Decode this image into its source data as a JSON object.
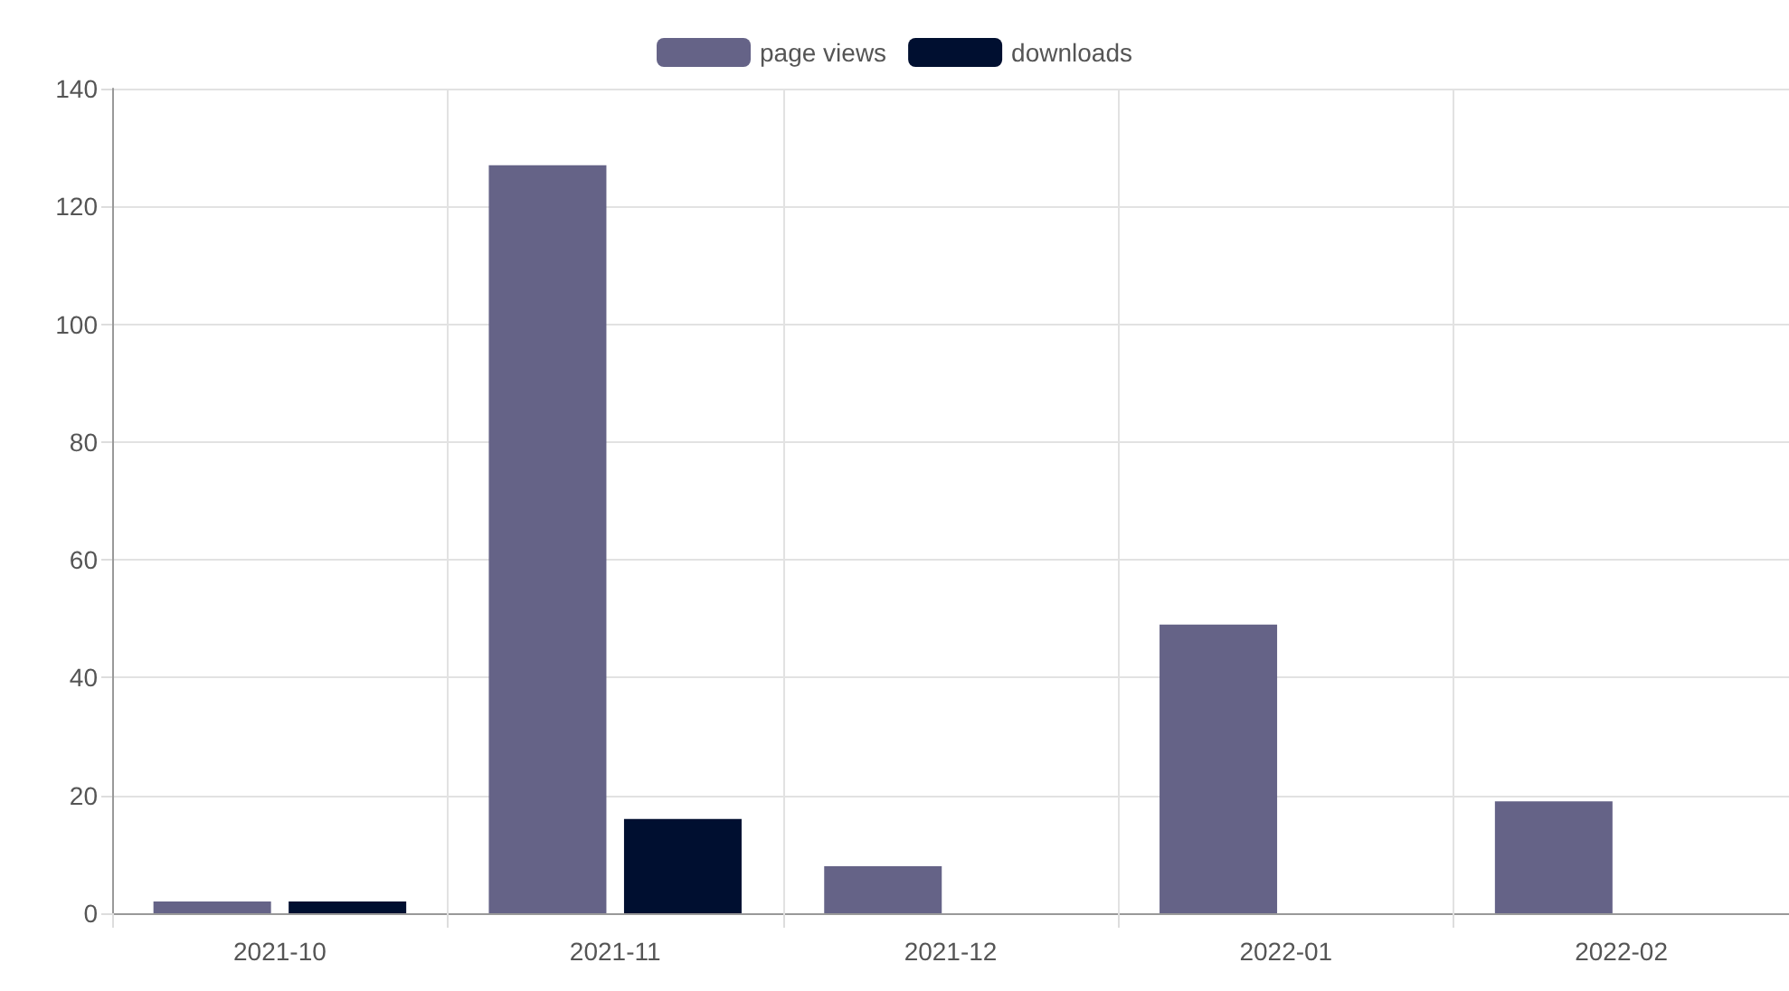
{
  "chart_data": {
    "type": "bar",
    "categories": [
      "2021-10",
      "2021-11",
      "2021-12",
      "2022-01",
      "2022-02"
    ],
    "series": [
      {
        "name": "page views",
        "color": "#656387",
        "values": [
          2,
          127,
          8,
          49,
          19
        ]
      },
      {
        "name": "downloads",
        "color": "#000f30",
        "values": [
          2,
          16,
          0,
          0,
          0
        ]
      }
    ],
    "ylim": [
      0,
      140
    ],
    "yticks": [
      0,
      20,
      40,
      60,
      80,
      100,
      120,
      140
    ],
    "grid": true,
    "legend": "top"
  }
}
